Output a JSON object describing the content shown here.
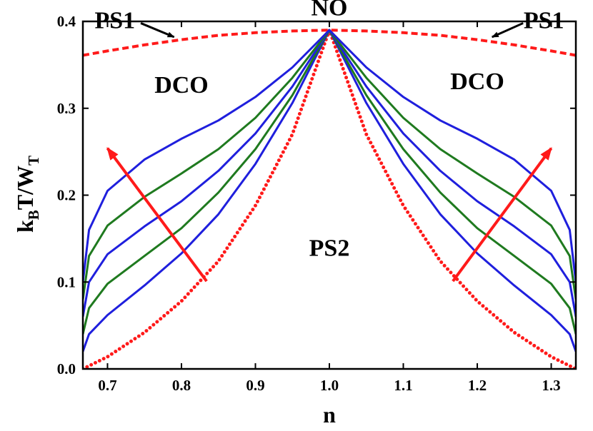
{
  "chart_data": {
    "type": "line",
    "xlabel": "n",
    "ylabel_parts": [
      "k",
      "B",
      "T/W",
      "T"
    ],
    "xlim": [
      0.6667,
      1.3333
    ],
    "ylim": [
      0.0,
      0.4
    ],
    "xticks": [
      "0.7",
      "0.8",
      "0.9",
      "1.0",
      "1.1",
      "1.2",
      "1.3"
    ],
    "xtick_values": [
      0.7,
      0.8,
      0.9,
      1.0,
      1.1,
      1.2,
      1.3
    ],
    "yticks": [
      "0.0",
      "0.1",
      "0.2",
      "0.3",
      "0.4"
    ],
    "ytick_values": [
      0.0,
      0.1,
      0.2,
      0.3,
      0.4
    ],
    "grid": false,
    "colors": {
      "blue": "#1f1fdd",
      "green": "#1f7a1f",
      "red": "#ff1a1a"
    },
    "region_labels": [
      {
        "text": "NO",
        "x": 1.0,
        "y": 0.407
      },
      {
        "text": "PS1",
        "x": 0.71,
        "y": 0.392
      },
      {
        "text": "PS1",
        "x": 1.29,
        "y": 0.392
      },
      {
        "text": "DCO",
        "x": 0.8,
        "y": 0.318
      },
      {
        "text": "DCO",
        "x": 1.2,
        "y": 0.322
      },
      {
        "text": "PS2",
        "x": 1.0,
        "y": 0.13
      }
    ],
    "annotations": [
      {
        "kind": "pointer",
        "from": [
          0.745,
          0.398
        ],
        "to": [
          0.79,
          0.382
        ]
      },
      {
        "kind": "pointer",
        "from": [
          1.262,
          0.398
        ],
        "to": [
          1.22,
          0.382
        ]
      },
      {
        "kind": "trend-arrow",
        "from": [
          0.834,
          0.101
        ],
        "to": [
          0.7,
          0.254
        ]
      },
      {
        "kind": "trend-arrow",
        "from": [
          1.167,
          0.101
        ],
        "to": [
          1.3,
          0.254
        ]
      }
    ],
    "series": [
      {
        "style": "dashed",
        "color": "red",
        "x": [
          0.6667,
          0.7,
          0.75,
          0.8,
          0.85,
          0.9,
          0.95,
          1.0,
          1.05,
          1.1,
          1.15,
          1.2,
          1.25,
          1.3,
          1.3333
        ],
        "y": [
          0.361,
          0.366,
          0.373,
          0.379,
          0.384,
          0.387,
          0.389,
          0.39,
          0.389,
          0.387,
          0.384,
          0.379,
          0.373,
          0.366,
          0.361
        ]
      },
      {
        "style": "dotted",
        "color": "red",
        "x": [
          0.6667,
          0.7,
          0.75,
          0.8,
          0.85,
          0.9,
          0.95,
          1.0,
          1.05,
          1.1,
          1.15,
          1.2,
          1.25,
          1.3,
          1.3333
        ],
        "y": [
          0.0,
          0.014,
          0.042,
          0.078,
          0.124,
          0.188,
          0.27,
          0.39,
          0.27,
          0.188,
          0.124,
          0.078,
          0.042,
          0.014,
          0.0
        ]
      },
      {
        "style": "solid",
        "color": "blue",
        "x": [
          0.6667,
          0.675,
          0.7,
          0.75,
          0.8,
          0.85,
          0.9,
          0.95,
          1.0,
          1.05,
          1.1,
          1.15,
          1.2,
          1.25,
          1.3,
          1.325,
          1.3333
        ],
        "y": [
          0.02,
          0.04,
          0.062,
          0.096,
          0.133,
          0.178,
          0.236,
          0.306,
          0.39,
          0.306,
          0.236,
          0.178,
          0.133,
          0.096,
          0.062,
          0.04,
          0.02
        ]
      },
      {
        "style": "solid",
        "color": "green",
        "x": [
          0.6667,
          0.675,
          0.7,
          0.75,
          0.8,
          0.85,
          0.9,
          0.95,
          1.0,
          1.05,
          1.1,
          1.15,
          1.2,
          1.25,
          1.3,
          1.325,
          1.3333
        ],
        "y": [
          0.04,
          0.07,
          0.098,
          0.13,
          0.162,
          0.203,
          0.253,
          0.315,
          0.39,
          0.315,
          0.253,
          0.203,
          0.162,
          0.13,
          0.098,
          0.07,
          0.04
        ]
      },
      {
        "style": "solid",
        "color": "blue",
        "x": [
          0.6667,
          0.675,
          0.7,
          0.75,
          0.8,
          0.85,
          0.9,
          0.95,
          1.0,
          1.05,
          1.1,
          1.15,
          1.2,
          1.25,
          1.3,
          1.325,
          1.3333
        ],
        "y": [
          0.06,
          0.1,
          0.132,
          0.164,
          0.193,
          0.228,
          0.271,
          0.325,
          0.39,
          0.325,
          0.271,
          0.228,
          0.193,
          0.164,
          0.132,
          0.1,
          0.06
        ]
      },
      {
        "style": "solid",
        "color": "green",
        "x": [
          0.6667,
          0.675,
          0.7,
          0.75,
          0.8,
          0.85,
          0.9,
          0.95,
          1.0,
          1.05,
          1.1,
          1.15,
          1.2,
          1.25,
          1.3,
          1.325,
          1.3333
        ],
        "y": [
          0.08,
          0.13,
          0.165,
          0.198,
          0.225,
          0.253,
          0.289,
          0.335,
          0.39,
          0.335,
          0.289,
          0.253,
          0.225,
          0.198,
          0.165,
          0.13,
          0.08
        ]
      },
      {
        "style": "solid",
        "color": "blue",
        "x": [
          0.6667,
          0.675,
          0.7,
          0.75,
          0.8,
          0.85,
          0.9,
          0.95,
          1.0,
          1.05,
          1.1,
          1.15,
          1.2,
          1.25,
          1.3,
          1.325,
          1.3333
        ],
        "y": [
          0.1,
          0.16,
          0.205,
          0.241,
          0.265,
          0.286,
          0.313,
          0.347,
          0.39,
          0.347,
          0.313,
          0.286,
          0.265,
          0.241,
          0.205,
          0.16,
          0.1
        ]
      }
    ]
  }
}
